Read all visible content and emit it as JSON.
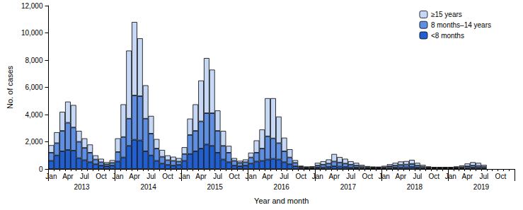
{
  "chart_data": {
    "type": "bar",
    "stacked": true,
    "x_label": "Year and month",
    "y_label": "No. of cases",
    "categories": [
      "Jan",
      null,
      null,
      "Apr",
      null,
      null,
      "Jul",
      null,
      null,
      "Oct",
      null,
      null,
      "Jan",
      null,
      null,
      "Apr",
      null,
      null,
      "Jul",
      null,
      null,
      "Oct",
      null,
      null,
      "Jan",
      null,
      null,
      "Apr",
      null,
      null,
      "Jul",
      null,
      null,
      "Oct",
      null,
      null,
      "Jan",
      null,
      null,
      "Apr",
      null,
      null,
      "Jul",
      null,
      null,
      "Oct",
      null,
      null,
      "Jan",
      null,
      null,
      "Apr",
      null,
      null,
      "Jul",
      null,
      null,
      "Oct",
      null,
      null,
      "Jan",
      null,
      null,
      "Apr",
      null,
      null,
      "Jul",
      null,
      null,
      "Oct",
      null,
      null,
      "Jan",
      null,
      null,
      "Apr",
      null,
      null,
      "Jul",
      null,
      null,
      "Oct",
      null,
      null
    ],
    "year_labels": [
      "2013",
      "2014",
      "2015",
      "2016",
      "2017",
      "2018",
      "2019"
    ],
    "series": [
      {
        "name": "<8 months",
        "color": "#1f5fd1",
        "values": [
          600,
          1000,
          1300,
          1400,
          1350,
          800,
          650,
          500,
          350,
          250,
          200,
          250,
          550,
          850,
          1700,
          2150,
          2100,
          1300,
          1000,
          600,
          400,
          300,
          250,
          300,
          600,
          1100,
          1300,
          1500,
          1800,
          1700,
          1200,
          700,
          500,
          250,
          200,
          250,
          400,
          550,
          600,
          700,
          750,
          700,
          500,
          350,
          200,
          80,
          60,
          60,
          100,
          120,
          150,
          200,
          180,
          150,
          120,
          100,
          80,
          60,
          50,
          50,
          60,
          80,
          100,
          120,
          130,
          150,
          100,
          70,
          50,
          40,
          40,
          40,
          40,
          50,
          60,
          80,
          100,
          90,
          70,
          null,
          null,
          null,
          null,
          null
        ]
      },
      {
        "name": "8 months–14 years",
        "color": "#5e8fe3",
        "values": [
          600,
          900,
          1500,
          2000,
          1700,
          1200,
          900,
          700,
          350,
          250,
          150,
          200,
          700,
          1500,
          2000,
          3250,
          3250,
          2400,
          1600,
          900,
          500,
          350,
          350,
          250,
          500,
          1400,
          1500,
          2000,
          2300,
          2400,
          1600,
          1000,
          700,
          350,
          250,
          250,
          450,
          650,
          900,
          1700,
          1500,
          1200,
          800,
          500,
          250,
          80,
          60,
          60,
          150,
          200,
          250,
          350,
          300,
          250,
          200,
          150,
          100,
          70,
          60,
          60,
          70,
          120,
          150,
          180,
          200,
          220,
          150,
          100,
          60,
          50,
          50,
          50,
          50,
          60,
          80,
          120,
          150,
          140,
          100,
          null,
          null,
          null,
          null,
          null
        ]
      },
      {
        "name": "≥15 years",
        "color": "#c6d8f5",
        "values": [
          550,
          800,
          1400,
          1550,
          1650,
          800,
          700,
          600,
          300,
          250,
          150,
          200,
          1000,
          2400,
          5000,
          5400,
          4250,
          2450,
          1300,
          700,
          500,
          350,
          300,
          250,
          500,
          1200,
          1950,
          3000,
          4050,
          3200,
          1500,
          1100,
          500,
          200,
          150,
          200,
          350,
          900,
          1400,
          2800,
          2950,
          1950,
          1000,
          600,
          200,
          80,
          60,
          80,
          200,
          250,
          300,
          550,
          400,
          350,
          250,
          200,
          120,
          80,
          70,
          60,
          100,
          150,
          200,
          250,
          250,
          300,
          200,
          130,
          80,
          60,
          60,
          60,
          60,
          80,
          120,
          200,
          250,
          220,
          130,
          null,
          null,
          null,
          null,
          null
        ]
      }
    ],
    "ylim": [
      0,
      12000
    ],
    "yticks": [
      0,
      {
        "value": 2000,
        "label": "2,000"
      },
      {
        "value": 4000,
        "label": "4,000"
      },
      {
        "value": 6000,
        "label": "6,000"
      },
      {
        "value": 8000,
        "label": "8,000"
      },
      {
        "value": 10000,
        "label": "10,000"
      },
      {
        "value": 12000,
        "label": "12,000"
      }
    ],
    "legend": "top-right",
    "grid": false
  }
}
